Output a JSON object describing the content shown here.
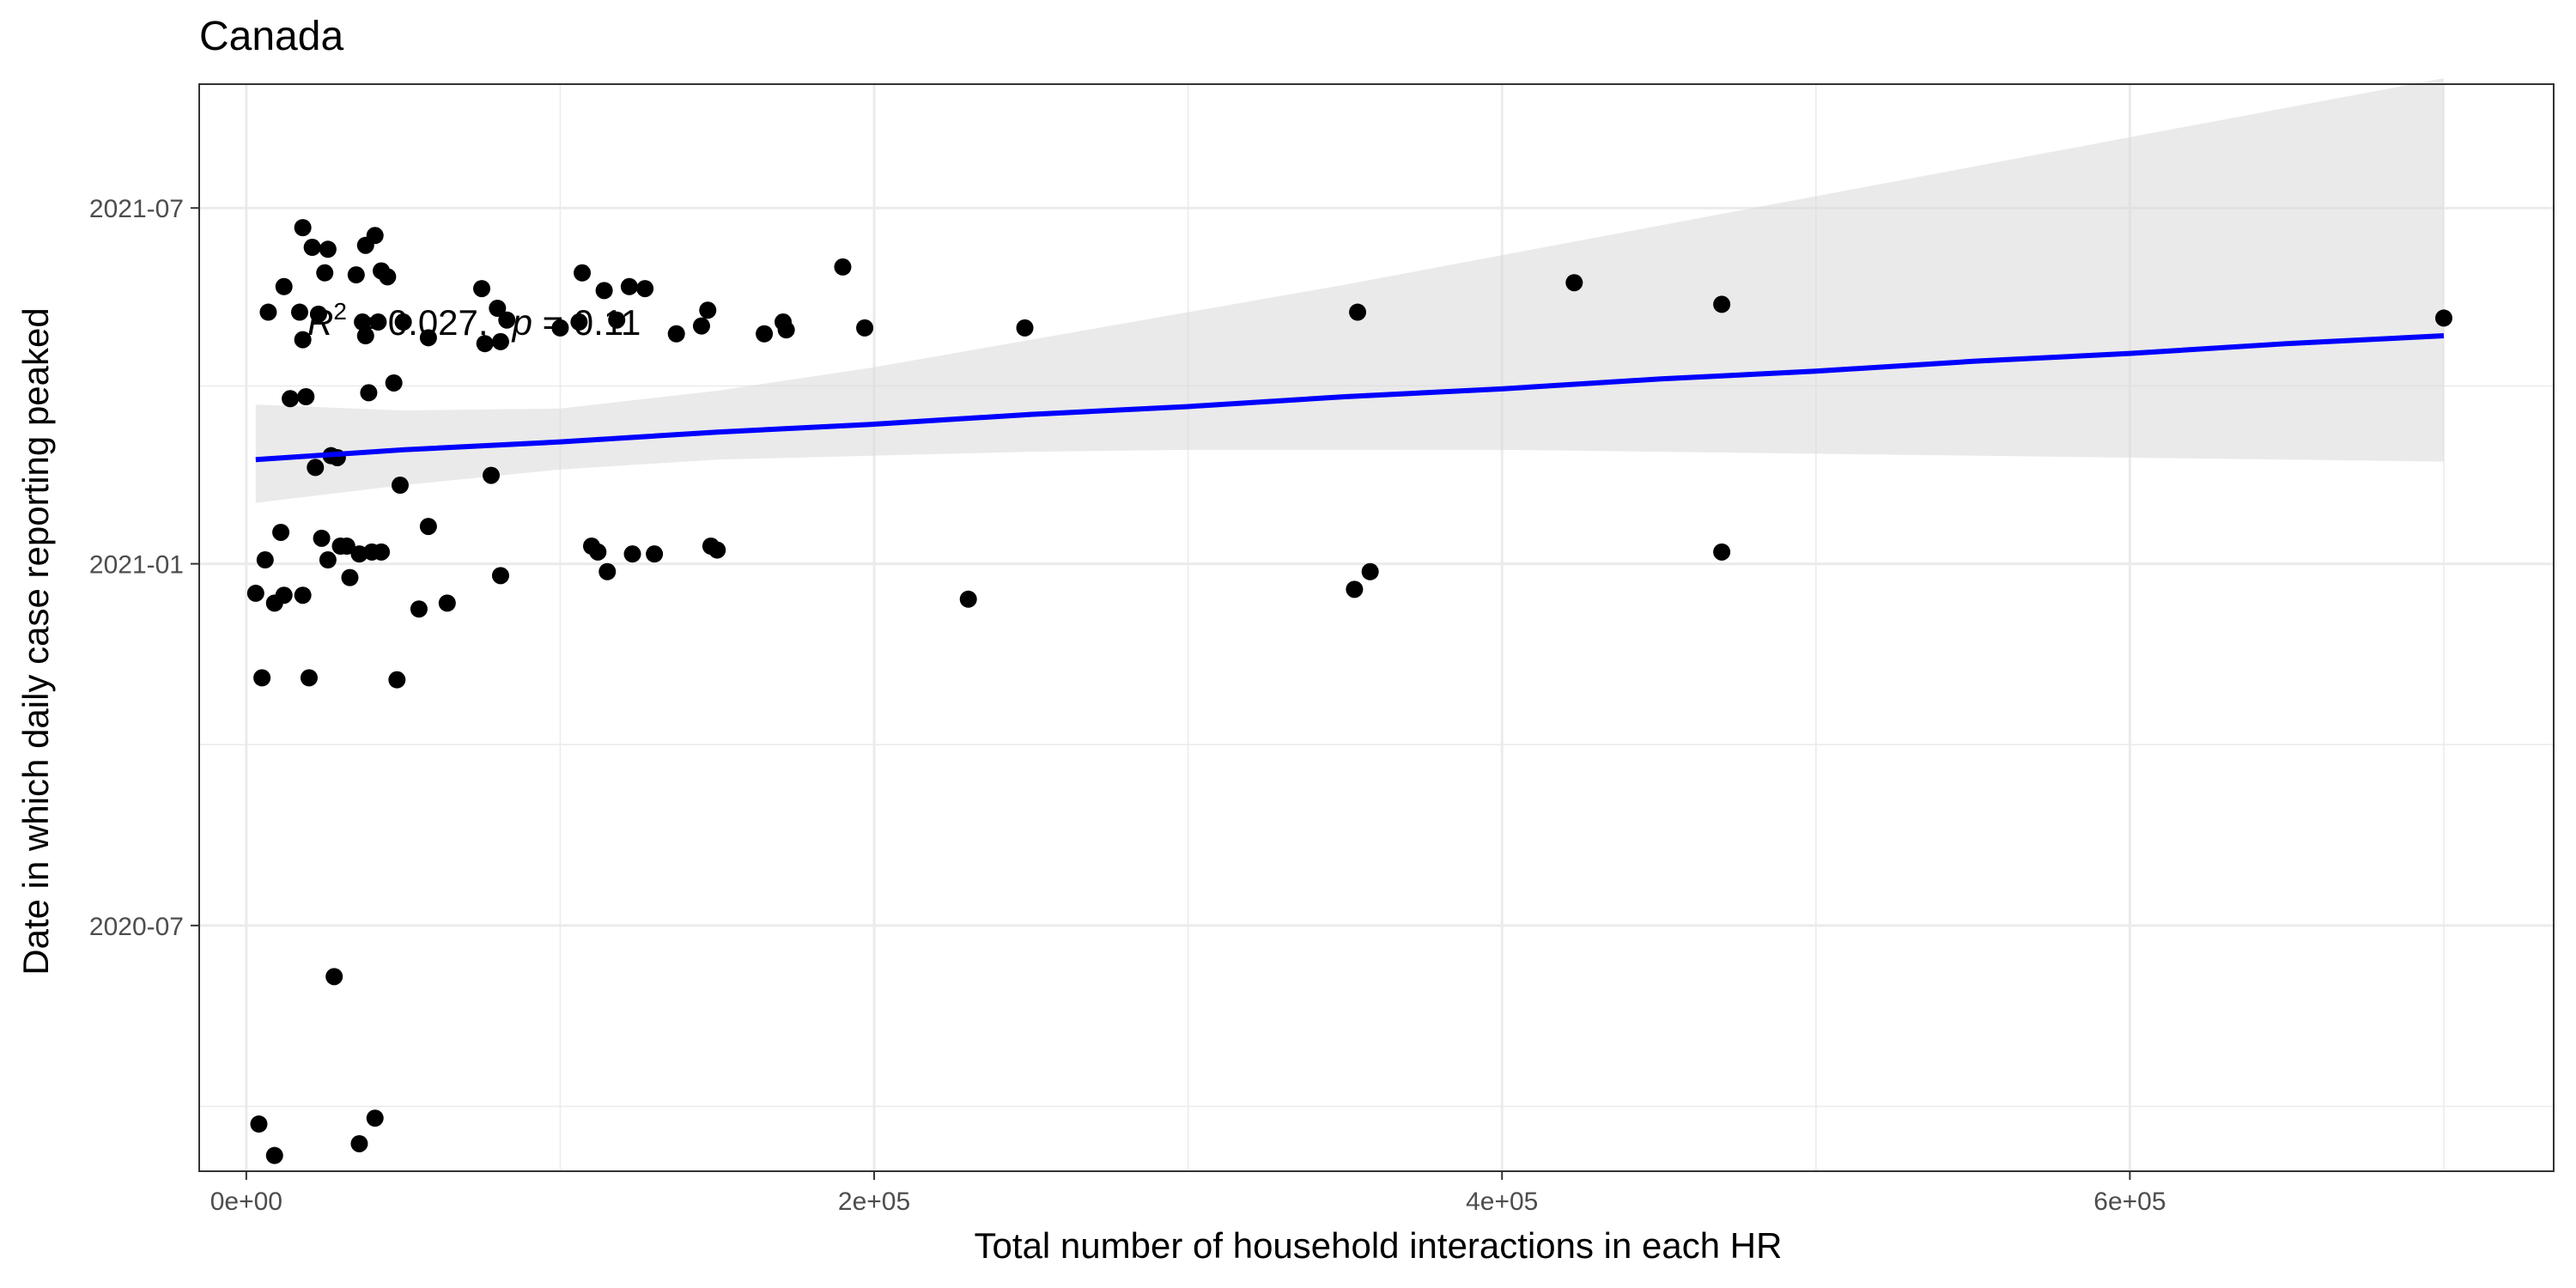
{
  "chart_data": {
    "type": "scatter",
    "title": "Canada",
    "xlabel": "Total number of household interactions in each HR",
    "ylabel": "Date in which daily case reporting peaked",
    "xlim": [
      -15000,
      735000
    ],
    "ylim": [
      "2020-02-27",
      "2021-09-02"
    ],
    "x_ticks": [
      0,
      200000,
      400000,
      600000
    ],
    "x_tick_labels": [
      "0e+00",
      "2e+05",
      "4e+05",
      "6e+05"
    ],
    "y_ticks": [
      "2020-07-01",
      "2021-01-01",
      "2021-07-01"
    ],
    "y_tick_labels": [
      "2020-07",
      "2021-01",
      "2021-07"
    ],
    "grid": true,
    "annotation": {
      "r2_label": "R",
      "r2_sup": "2",
      "r2_value": " = 0.027,",
      "p_label": "p",
      "p_value": " = 0.11"
    },
    "colors": {
      "points": "#000000",
      "fit_line": "#0000ff",
      "ribbon": "#d9d9d9",
      "grid": "#ebebeb",
      "panel_border": "#333333"
    },
    "fit": {
      "x": [
        3000,
        50000,
        100000,
        150000,
        200000,
        250000,
        300000,
        350000,
        400000,
        450000,
        500000,
        550000,
        600000,
        650000,
        700000
      ],
      "y": [
        "2021-02-23",
        "2021-02-28",
        "2021-03-04",
        "2021-03-09",
        "2021-03-13",
        "2021-03-18",
        "2021-03-22",
        "2021-03-27",
        "2021-03-31",
        "2021-04-05",
        "2021-04-09",
        "2021-04-14",
        "2021-04-18",
        "2021-04-23",
        "2021-04-27"
      ],
      "lower": [
        "2021-02-01",
        "2021-02-10",
        "2021-02-18",
        "2021-02-23",
        "2021-02-25",
        "2021-02-27",
        "2021-02-28",
        "2021-02-28",
        "2021-02-28",
        "2021-02-27",
        "2021-02-26",
        "2021-02-25",
        "2021-02-24",
        "2021-02-23",
        "2021-02-22"
      ],
      "upper": [
        "2021-03-23",
        "2021-03-20",
        "2021-03-21",
        "2021-03-30",
        "2021-04-11",
        "2021-04-25",
        "2021-05-09",
        "2021-05-23",
        "2021-06-07",
        "2021-06-22",
        "2021-07-07",
        "2021-07-22",
        "2021-08-06",
        "2021-08-21",
        "2021-09-05"
      ]
    },
    "points": [
      {
        "x": 3000,
        "y": "2020-12-17"
      },
      {
        "x": 5000,
        "y": "2020-11-04"
      },
      {
        "x": 4000,
        "y": "2020-03-22"
      },
      {
        "x": 6000,
        "y": "2021-01-03"
      },
      {
        "x": 7000,
        "y": "2021-05-09"
      },
      {
        "x": 9000,
        "y": "2020-12-12"
      },
      {
        "x": 9000,
        "y": "2020-03-06"
      },
      {
        "x": 11000,
        "y": "2021-01-17"
      },
      {
        "x": 12000,
        "y": "2021-05-22"
      },
      {
        "x": 12000,
        "y": "2020-12-16"
      },
      {
        "x": 14000,
        "y": "2021-03-26"
      },
      {
        "x": 17000,
        "y": "2021-05-09"
      },
      {
        "x": 18000,
        "y": "2021-04-25"
      },
      {
        "x": 18000,
        "y": "2021-06-21"
      },
      {
        "x": 18000,
        "y": "2020-12-16"
      },
      {
        "x": 19000,
        "y": "2021-03-27"
      },
      {
        "x": 20000,
        "y": "2020-11-04"
      },
      {
        "x": 21000,
        "y": "2021-06-11"
      },
      {
        "x": 22000,
        "y": "2021-02-19"
      },
      {
        "x": 23000,
        "y": "2021-05-08"
      },
      {
        "x": 24000,
        "y": "2021-01-14"
      },
      {
        "x": 25000,
        "y": "2021-05-29"
      },
      {
        "x": 26000,
        "y": "2021-06-10"
      },
      {
        "x": 26000,
        "y": "2021-01-03"
      },
      {
        "x": 27000,
        "y": "2021-02-25"
      },
      {
        "x": 28000,
        "y": "2020-06-05"
      },
      {
        "x": 29000,
        "y": "2021-02-24"
      },
      {
        "x": 30000,
        "y": "2021-01-10"
      },
      {
        "x": 32000,
        "y": "2021-01-10"
      },
      {
        "x": 33000,
        "y": "2020-12-25"
      },
      {
        "x": 35000,
        "y": "2021-05-28"
      },
      {
        "x": 36000,
        "y": "2021-01-06"
      },
      {
        "x": 37000,
        "y": "2021-05-04"
      },
      {
        "x": 36000,
        "y": "2020-03-12"
      },
      {
        "x": 38000,
        "y": "2021-04-27"
      },
      {
        "x": 38000,
        "y": "2021-06-12"
      },
      {
        "x": 39000,
        "y": "2021-03-29"
      },
      {
        "x": 40000,
        "y": "2021-01-07"
      },
      {
        "x": 41000,
        "y": "2021-06-17"
      },
      {
        "x": 41000,
        "y": "2020-03-25"
      },
      {
        "x": 42000,
        "y": "2021-05-04"
      },
      {
        "x": 43000,
        "y": "2021-01-07"
      },
      {
        "x": 43000,
        "y": "2021-05-30"
      },
      {
        "x": 45000,
        "y": "2021-05-27"
      },
      {
        "x": 47000,
        "y": "2021-04-03"
      },
      {
        "x": 48000,
        "y": "2020-11-03"
      },
      {
        "x": 49000,
        "y": "2021-02-10"
      },
      {
        "x": 50000,
        "y": "2021-05-04"
      },
      {
        "x": 55000,
        "y": "2020-12-09"
      },
      {
        "x": 58000,
        "y": "2021-01-20"
      },
      {
        "x": 58000,
        "y": "2021-04-26"
      },
      {
        "x": 64000,
        "y": "2020-12-12"
      },
      {
        "x": 75000,
        "y": "2021-05-21"
      },
      {
        "x": 76000,
        "y": "2021-04-23"
      },
      {
        "x": 78000,
        "y": "2021-02-15"
      },
      {
        "x": 80000,
        "y": "2021-05-11"
      },
      {
        "x": 81000,
        "y": "2021-04-24"
      },
      {
        "x": 81000,
        "y": "2020-12-26"
      },
      {
        "x": 83000,
        "y": "2021-05-05"
      },
      {
        "x": 100000,
        "y": "2021-05-01"
      },
      {
        "x": 106000,
        "y": "2021-05-04"
      },
      {
        "x": 107000,
        "y": "2021-05-29"
      },
      {
        "x": 110000,
        "y": "2021-01-10"
      },
      {
        "x": 112000,
        "y": "2021-01-07"
      },
      {
        "x": 114000,
        "y": "2021-05-20"
      },
      {
        "x": 115000,
        "y": "2020-12-28"
      },
      {
        "x": 118000,
        "y": "2021-05-05"
      },
      {
        "x": 122000,
        "y": "2021-05-22"
      },
      {
        "x": 123000,
        "y": "2021-01-06"
      },
      {
        "x": 127000,
        "y": "2021-05-21"
      },
      {
        "x": 130000,
        "y": "2021-01-06"
      },
      {
        "x": 137000,
        "y": "2021-04-28"
      },
      {
        "x": 145000,
        "y": "2021-05-02"
      },
      {
        "x": 147000,
        "y": "2021-05-10"
      },
      {
        "x": 148000,
        "y": "2021-01-10"
      },
      {
        "x": 150000,
        "y": "2021-01-08"
      },
      {
        "x": 165000,
        "y": "2021-04-28"
      },
      {
        "x": 171000,
        "y": "2021-05-04"
      },
      {
        "x": 172000,
        "y": "2021-04-30"
      },
      {
        "x": 190000,
        "y": "2021-06-01"
      },
      {
        "x": 197000,
        "y": "2021-05-01"
      },
      {
        "x": 230000,
        "y": "2020-12-14"
      },
      {
        "x": 248000,
        "y": "2021-05-01"
      },
      {
        "x": 353000,
        "y": "2020-12-19"
      },
      {
        "x": 354000,
        "y": "2021-05-09"
      },
      {
        "x": 358000,
        "y": "2020-12-28"
      },
      {
        "x": 423000,
        "y": "2021-05-24"
      },
      {
        "x": 470000,
        "y": "2021-01-07"
      },
      {
        "x": 470000,
        "y": "2021-05-13"
      },
      {
        "x": 700000,
        "y": "2021-05-06"
      }
    ]
  }
}
